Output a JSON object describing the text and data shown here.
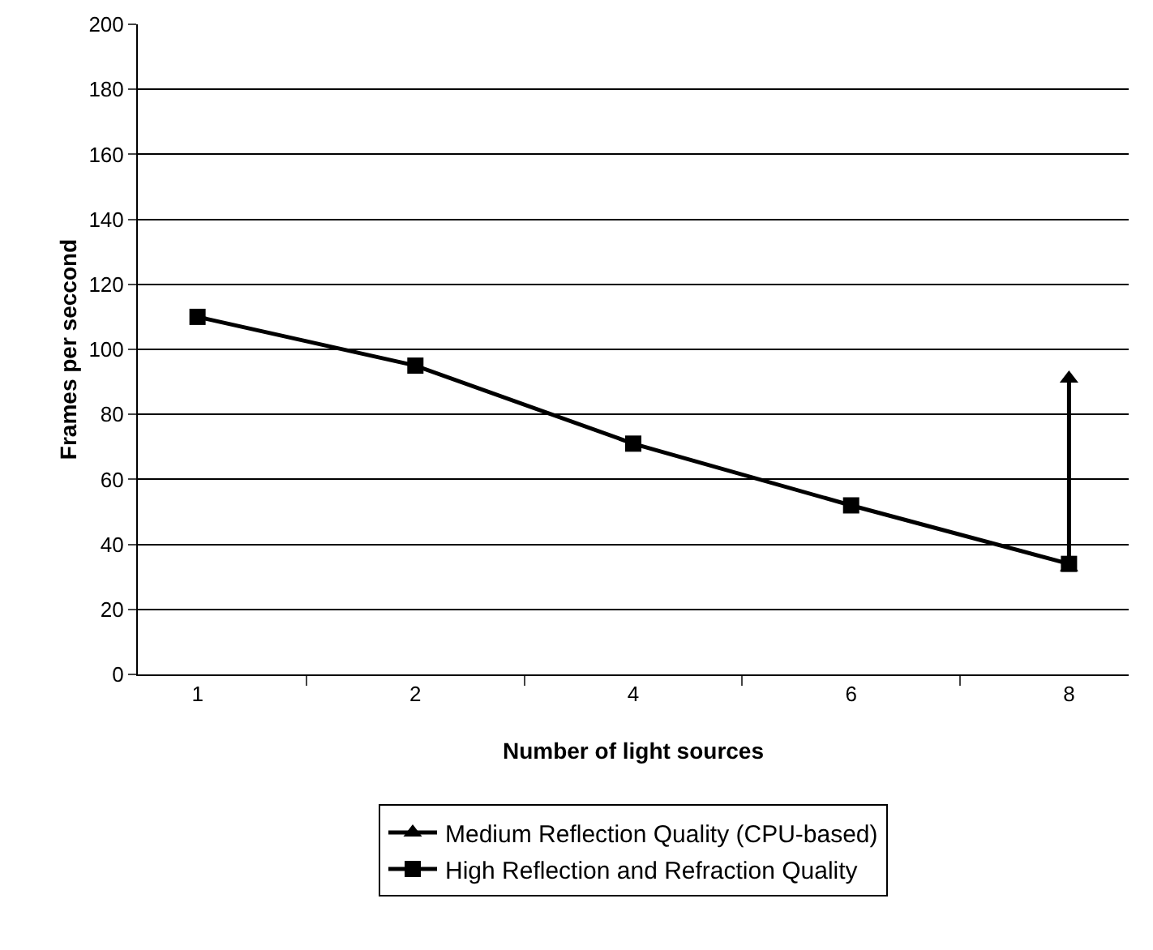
{
  "chart_data": {
    "type": "line",
    "xlabel": "Number of light sources",
    "ylabel": "Frames per seccond",
    "categories": [
      "1",
      "2",
      "4",
      "6",
      "8"
    ],
    "ylim": [
      0,
      200
    ],
    "yticks": [
      0,
      20,
      40,
      60,
      80,
      100,
      120,
      140,
      160,
      180,
      200
    ],
    "grid": "y",
    "legend": "bottom",
    "line_style": "solid",
    "series": [
      {
        "name": "Medium Reflection Quality (CPU-based)",
        "color": "#000000",
        "marker": "triangle",
        "x": [
          "8",
          "8"
        ],
        "values": [
          33,
          91
        ]
      },
      {
        "name": "High Reflection and Refraction Quality",
        "color": "#000000",
        "marker": "square",
        "values": [
          110,
          95,
          71,
          52,
          34
        ]
      }
    ]
  }
}
